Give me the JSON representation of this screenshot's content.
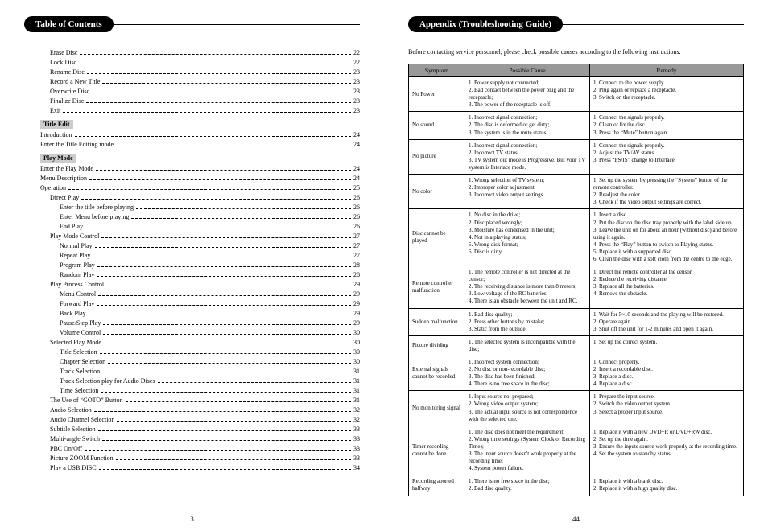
{
  "left": {
    "title": "Table of Contents",
    "page_num": "3",
    "items": [
      {
        "type": "row",
        "level": 1,
        "label": "Erase Disc",
        "page": "22"
      },
      {
        "type": "row",
        "level": 1,
        "label": "Lock Disc",
        "page": "22"
      },
      {
        "type": "row",
        "level": 1,
        "label": "Rename Disc",
        "page": "23"
      },
      {
        "type": "row",
        "level": 1,
        "label": "Record a New Title",
        "page": "23"
      },
      {
        "type": "row",
        "level": 1,
        "label": "Overwrite Disc",
        "page": "23"
      },
      {
        "type": "row",
        "level": 1,
        "label": "Finalize Disc",
        "page": "23"
      },
      {
        "type": "row",
        "level": 1,
        "label": "Exit",
        "page": "23"
      },
      {
        "type": "sub",
        "label": "Title Edit"
      },
      {
        "type": "row",
        "level": 0,
        "label": "Introduction",
        "page": "24"
      },
      {
        "type": "row",
        "level": 0,
        "label": "Enter the Title Editing mode",
        "page": "24"
      },
      {
        "type": "sub",
        "label": "Play Mode"
      },
      {
        "type": "row",
        "level": 0,
        "label": "Enter the Play Mode",
        "page": "24"
      },
      {
        "type": "row",
        "level": 0,
        "label": "Menu Description",
        "page": "24"
      },
      {
        "type": "row",
        "level": 0,
        "label": "Operation",
        "page": "25"
      },
      {
        "type": "row",
        "level": 1,
        "label": "Direct Play",
        "page": "26"
      },
      {
        "type": "row",
        "level": 2,
        "label": "Enter the title before playing",
        "page": "26"
      },
      {
        "type": "row",
        "level": 2,
        "label": "Enter Menu before playing",
        "page": "26"
      },
      {
        "type": "row",
        "level": 2,
        "label": "End Play",
        "page": "26"
      },
      {
        "type": "row",
        "level": 1,
        "label": "Play Mode Control",
        "page": "27"
      },
      {
        "type": "row",
        "level": 2,
        "label": "Normal Play",
        "page": "27"
      },
      {
        "type": "row",
        "level": 2,
        "label": "Repeat Play",
        "page": "27"
      },
      {
        "type": "row",
        "level": 2,
        "label": "Program Play",
        "page": "28"
      },
      {
        "type": "row",
        "level": 2,
        "label": "Random Play",
        "page": "28"
      },
      {
        "type": "row",
        "level": 1,
        "label": "Play Process Control",
        "page": "29"
      },
      {
        "type": "row",
        "level": 2,
        "label": "Menu Control",
        "page": "29"
      },
      {
        "type": "row",
        "level": 2,
        "label": "Forward Play",
        "page": "29"
      },
      {
        "type": "row",
        "level": 2,
        "label": "Back Play",
        "page": "29"
      },
      {
        "type": "row",
        "level": 2,
        "label": "Pause/Step Play",
        "page": "29"
      },
      {
        "type": "row",
        "level": 2,
        "label": "Volume Control",
        "page": "30"
      },
      {
        "type": "row",
        "level": 1,
        "label": "Selected Play Mode",
        "page": "30"
      },
      {
        "type": "row",
        "level": 2,
        "label": "Title Selection",
        "page": "30"
      },
      {
        "type": "row",
        "level": 2,
        "label": "Chapter Selection",
        "page": "30"
      },
      {
        "type": "row",
        "level": 2,
        "label": "Track Selection",
        "page": "31"
      },
      {
        "type": "row",
        "level": 2,
        "label": "Track Selection play for Audio Discs",
        "page": "31"
      },
      {
        "type": "row",
        "level": 2,
        "label": "Time Selection",
        "page": "31"
      },
      {
        "type": "row",
        "level": 1,
        "label": "The Use of “GOTO” Button",
        "page": "31"
      },
      {
        "type": "row",
        "level": 1,
        "label": "Audio Selection",
        "page": "32"
      },
      {
        "type": "row",
        "level": 1,
        "label": "Audio Channel Selection",
        "page": "32"
      },
      {
        "type": "row",
        "level": 1,
        "label": "Subtitle Selection",
        "page": "33"
      },
      {
        "type": "row",
        "level": 1,
        "label": "Multi-angle Switch",
        "page": "33"
      },
      {
        "type": "row",
        "level": 1,
        "label": "PBC On/Off",
        "page": "33"
      },
      {
        "type": "row",
        "level": 1,
        "label": "Picture ZOOM Function",
        "page": "33"
      },
      {
        "type": "row",
        "level": 1,
        "label": "Play a USB DISC",
        "page": "34"
      }
    ]
  },
  "right": {
    "title": "Appendix (Troubleshooting Guide)",
    "page_num": "44",
    "intro": "Before contacting service personnel, please check possible causes according to the following instructions.",
    "headers": [
      "Symptom",
      "Possible Cause",
      "Remedy"
    ],
    "rows": [
      {
        "s": "No Power",
        "c": "1. Power supply not connected;\n2. Bad contact between the power plug and the receptacle;\n3. The power of the receptacle is off.",
        "r": "1. Connect to the power supply.\n2. Plug again or replace a receptacle.\n3. Switch on the receptacle."
      },
      {
        "s": "No sound",
        "c": "1. Incorrect signal connection;\n2. The disc is deformed or get dirty;\n3. The system is in the mute status.",
        "r": "1. Connect the signals properly.\n2. Clean or fix the disc.\n3. Press the “Mute” button again."
      },
      {
        "s": "No picture",
        "c": "1. Incorrect signal connection;\n2. Incorrect TV status.\n3. TV system out mode is Progressive. But your TV system is Interlace mode.",
        "r": "1. Connect the signals properly.\n2. Adjust the TV/AV status.\n3. Press “PS/IS” change to Interlace."
      },
      {
        "s": "No color",
        "c": "1. Wrong selection of TV system;\n2. Improper color adjustment;\n3. Incorrect video output settings",
        "r": "1. Set up the system by pressing the “System” button of the remote controller.\n2. Readjust the color.\n3. Check if the video output settings are correct."
      },
      {
        "s": "Disc cannot be played",
        "c": "1. No disc in the drive;\n2. Disc placed wrongly;\n3. Moisture has condensed in the unit;\n4. Not in a playing status;\n5. Wrong disk format;\n6. Disc is dirty.",
        "r": "1. Insert a disc.\n2. Put the disc on the disc tray properly with the label side up.\n3. Leave the unit on for about an hour (without disc) and before using it again.\n4. Press the “Play” button to switch to Playing status.\n5. Replace it with a supported disc.\n6. Clean the disc with a soft cloth from the centre to the edge."
      },
      {
        "s": "Remote controller malfunction",
        "c": "1. The remote controller is not directed at the censor;\n2. The receiving distance is more than 8 meters;\n3. Low voltage of the RC batteries;\n4. There is an obstacle between the unit and RC.",
        "r": "1. Direct the remote controller at the censor.\n2. Reduce the receiving distance.\n3. Replace all the batteries.\n4. Remove the obstacle."
      },
      {
        "s": "Sudden malfunction",
        "c": "1. Bad disc quality;\n2. Press other buttons by mistake;\n3. Static from the outside.",
        "r": "1. Wait for 5~10 seconds and the playing will be restored.\n2. Operate again.\n3. Shut off the unit for 1-2 minutes and open it again."
      },
      {
        "s": "Picture dividing",
        "c": "1. The selected system is incompatible with the disc;",
        "r": "1. Set up the correct system."
      },
      {
        "s": "External signals cannot be recorded",
        "c": "1. Incorrect system connection;\n2. No disc or non-recordable disc;\n3. The disc has been finished;\n4. There is no free space in the disc;",
        "r": "1. Connect properly.\n2. Insert a recordable disc.\n3. Replace a disc.\n4. Replace a disc."
      },
      {
        "s": "No monitoring signal",
        "c": "1. Input source not prepared;\n2. Wrong video output system;\n3. The actual input source is not correspondence with the selected one.",
        "r": "1. Prepare the input source.\n2. Switch the video output system.\n3. Select a proper input source."
      },
      {
        "s": "Timer recording cannot be done",
        "c": "1. The disc does not meet the requirement;\n2. Wrong time settings (System Clock or Recording Time);\n3. The input source doesn't work properly at the recording time;\n4. System power failure.",
        "r": "1. Replace it with a new DVD+R or DVD+RW disc.\n2. Set up the time again.\n3. Ensure the inputs source work properly at the recording time.\n4. Set the system to standby status."
      },
      {
        "s": "Recording aborted halfway",
        "c": "1. There is no free space in the disc;\n2. Bad disc quality.",
        "r": "1. Replace it with a blank disc.\n2. Replace it with a high quality disc."
      }
    ]
  }
}
